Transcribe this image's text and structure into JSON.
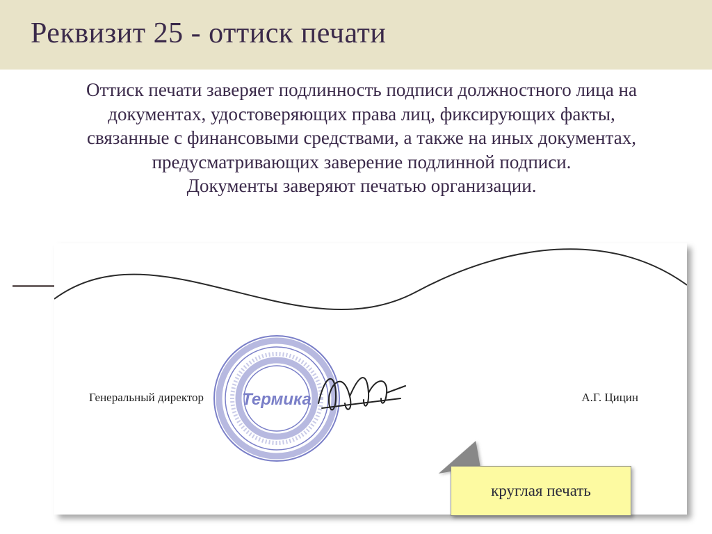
{
  "title": "Реквизит 25 - оттиск печати",
  "body": "Оттиск печати заверяет подлинность подписи должностного лица на документах, удостоверяющих права лиц, фиксирующих факты, связанные с финансовыми средствами, а также на иных документах, предусматривающих заверение подлинной подписи.\nДокументы заверяют печатью организации.",
  "figure": {
    "director_label": "Генеральный директор",
    "person_name": "А.Г. Цицин",
    "stamp_center_text": "Термика",
    "callout_label": "круглая печать",
    "colors": {
      "stamp_ink": "#7a7fc8",
      "stamp_ink_light": "#b7b9e0",
      "callout_fill": "#fdfaa1",
      "callout_border": "#888888",
      "title_band": "#e8e3c8",
      "text_color": "#3b2a4a",
      "rule_color": "#6e6464"
    },
    "font_sizes": {
      "title": 42,
      "body": 27,
      "labels": 17,
      "callout": 23
    }
  }
}
